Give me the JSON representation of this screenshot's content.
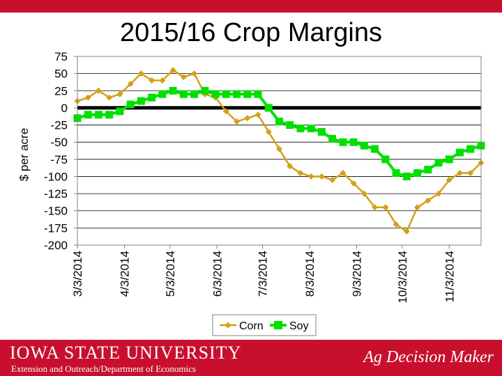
{
  "title": "2015/16 Crop Margins",
  "footer": {
    "university": "IOWA STATE UNIVERSITY",
    "department": "Extension and Outreach/Department of Economics",
    "brand": "Ag Decision Maker"
  },
  "colors": {
    "corn": "#d4a017",
    "soy": "#00e000",
    "footer": "#c8102e",
    "zero_line": "#000000"
  },
  "chart_data": {
    "type": "line",
    "title": "2015/16 Crop Margins",
    "xlabel": "",
    "ylabel": "$ per acre",
    "ylim": [
      -200,
      75
    ],
    "yticks": [
      75,
      50,
      25,
      0,
      -25,
      -50,
      -75,
      -100,
      -125,
      -150,
      -175,
      -200
    ],
    "xlim": [
      "3/3/2014",
      "11/24/2014"
    ],
    "xticks": [
      "3/3/2014",
      "4/3/2014",
      "5/3/2014",
      "6/3/2014",
      "7/3/2014",
      "8/3/2014",
      "9/3/2014",
      "10/3/2014",
      "11/3/2014"
    ],
    "grid": true,
    "legend": "bottom",
    "series": [
      {
        "name": "Corn",
        "x": [
          "3/3/2014",
          "3/10/2014",
          "3/17/2014",
          "3/24/2014",
          "3/31/2014",
          "4/7/2014",
          "4/14/2014",
          "4/21/2014",
          "4/28/2014",
          "5/5/2014",
          "5/12/2014",
          "5/19/2014",
          "5/26/2014",
          "6/2/2014",
          "6/9/2014",
          "6/16/2014",
          "6/23/2014",
          "6/30/2014",
          "7/7/2014",
          "7/14/2014",
          "7/21/2014",
          "7/28/2014",
          "8/4/2014",
          "8/11/2014",
          "8/18/2014",
          "8/25/2014",
          "9/1/2014",
          "9/8/2014",
          "9/15/2014",
          "9/22/2014",
          "9/29/2014",
          "10/6/2014",
          "10/13/2014",
          "10/20/2014",
          "10/27/2014",
          "11/3/2014",
          "11/10/2014",
          "11/17/2014",
          "11/24/2014"
        ],
        "values": [
          10,
          15,
          25,
          15,
          20,
          35,
          50,
          40,
          40,
          55,
          45,
          50,
          20,
          15,
          -5,
          -20,
          -15,
          -10,
          -35,
          -60,
          -85,
          -95,
          -100,
          -100,
          -105,
          -95,
          -110,
          -125,
          -145,
          -145,
          -170,
          -180,
          -145,
          -135,
          -125,
          -105,
          -95,
          -95,
          -80
        ]
      },
      {
        "name": "Soy",
        "x": [
          "3/3/2014",
          "3/10/2014",
          "3/17/2014",
          "3/24/2014",
          "3/31/2014",
          "4/7/2014",
          "4/14/2014",
          "4/21/2014",
          "4/28/2014",
          "5/5/2014",
          "5/12/2014",
          "5/19/2014",
          "5/26/2014",
          "6/2/2014",
          "6/9/2014",
          "6/16/2014",
          "6/23/2014",
          "6/30/2014",
          "7/7/2014",
          "7/14/2014",
          "7/21/2014",
          "7/28/2014",
          "8/4/2014",
          "8/11/2014",
          "8/18/2014",
          "8/25/2014",
          "9/1/2014",
          "9/8/2014",
          "9/15/2014",
          "9/22/2014",
          "9/29/2014",
          "10/6/2014",
          "10/13/2014",
          "10/20/2014",
          "10/27/2014",
          "11/3/2014",
          "11/10/2014",
          "11/17/2014",
          "11/24/2014"
        ],
        "values": [
          -15,
          -10,
          -10,
          -10,
          -5,
          5,
          10,
          15,
          20,
          25,
          20,
          20,
          25,
          20,
          20,
          20,
          20,
          20,
          0,
          -20,
          -25,
          -30,
          -30,
          -35,
          -45,
          -50,
          -50,
          -55,
          -60,
          -75,
          -95,
          -100,
          -95,
          -90,
          -80,
          -75,
          -65,
          -60,
          -55
        ]
      }
    ]
  }
}
